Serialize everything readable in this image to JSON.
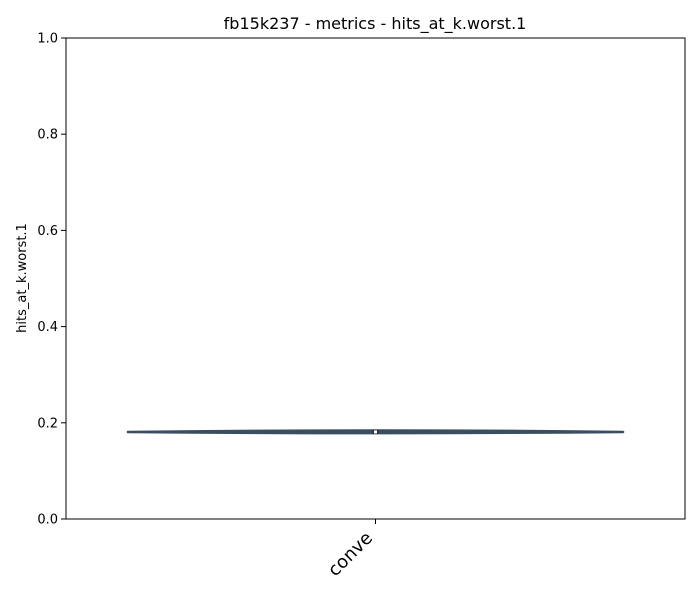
{
  "chart_data": {
    "type": "violin",
    "title": "fb15k237 - metrics - hits_at_k.worst.1",
    "xlabel": "",
    "ylabel": "hits_at_k.worst.1",
    "ylim": [
      0,
      1
    ],
    "yticks": [
      0.0,
      0.2,
      0.4,
      0.6,
      0.8,
      1.0
    ],
    "ytick_labels": [
      "0.0",
      "0.2",
      "0.4",
      "0.6",
      "0.8",
      "1.0"
    ],
    "grid": false,
    "legend": "none",
    "categories": [
      "conve"
    ],
    "series": [
      {
        "category": "conve",
        "min": 0.178,
        "q1": 0.179,
        "median": 0.181,
        "q3": 0.183,
        "max": 0.185,
        "color": "#3b4d61"
      }
    ]
  }
}
